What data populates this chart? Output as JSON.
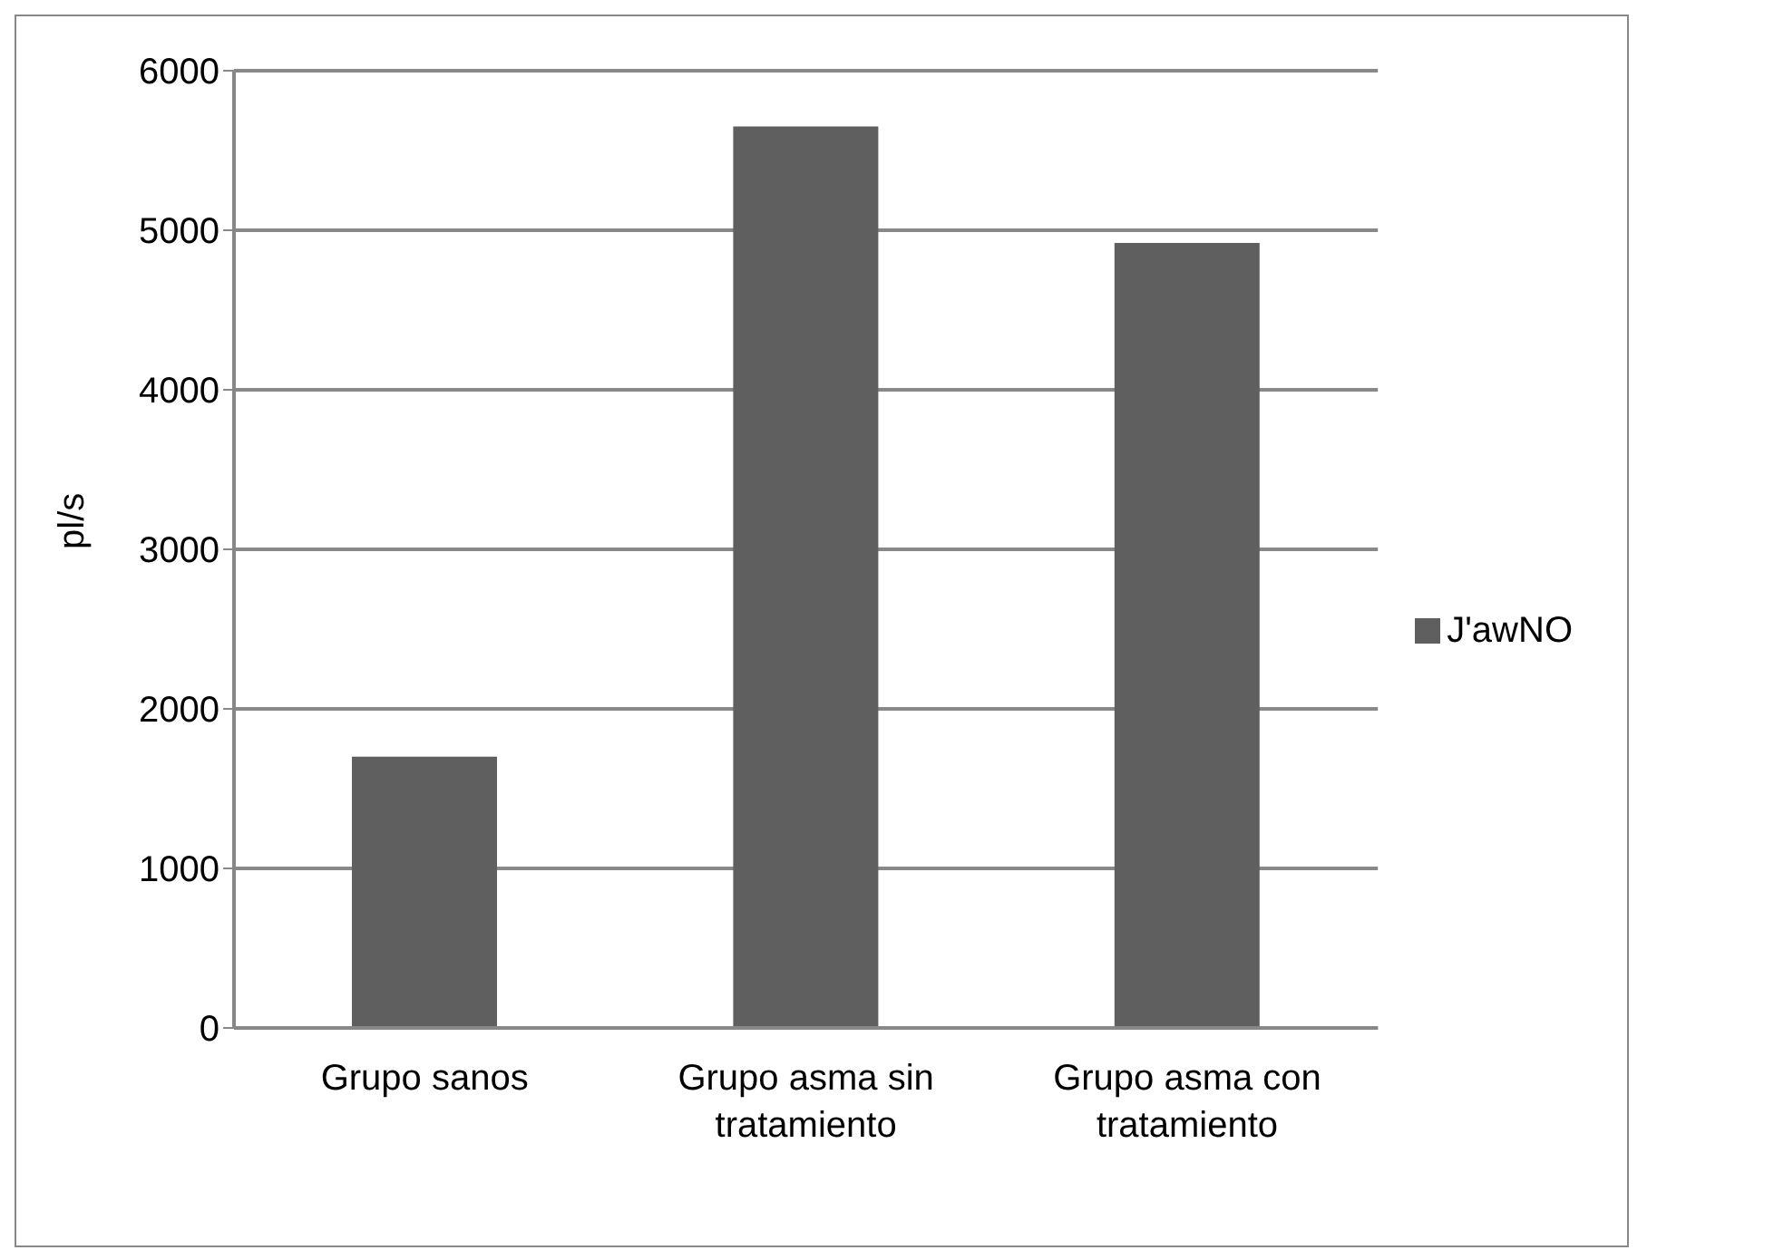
{
  "chart_data": {
    "type": "bar",
    "ylabel": "pl/s",
    "categories": [
      "Grupo sanos",
      "Grupo asma sin tratamiento",
      "Grupo asma con tratamiento"
    ],
    "series": [
      {
        "name": "J'awNO",
        "color": "#5f5f5f",
        "values": [
          1700,
          5650,
          4920
        ]
      }
    ],
    "ylim": [
      0,
      6000
    ],
    "yticks": [
      0,
      1000,
      2000,
      3000,
      4000,
      5000,
      6000
    ],
    "grid": "y",
    "legend": "right"
  }
}
